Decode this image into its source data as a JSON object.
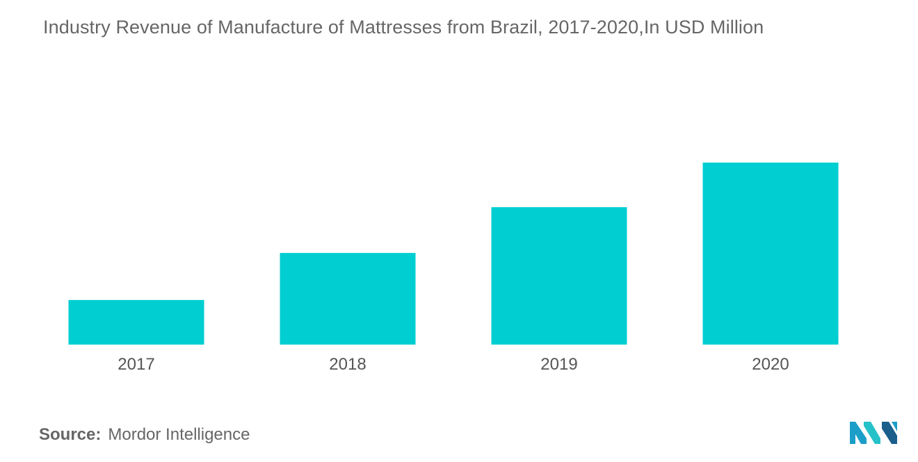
{
  "title": "Industry Revenue of Manufacture of Mattresses from Brazil, 2017-2020,In USD Million",
  "source": {
    "label": "Source:",
    "text": "Mordor Intelligence"
  },
  "logo": {
    "icon": "mordor-intelligence-logo",
    "colors": [
      "#1b9ec8",
      "#25c2c9",
      "#1a5f8c"
    ]
  },
  "colors": {
    "bar": "#00ced1",
    "text": "#666666"
  },
  "chart_data": {
    "type": "bar",
    "categories": [
      "2017",
      "2018",
      "2019",
      "2020"
    ],
    "values": [
      37,
      76,
      114,
      151
    ],
    "title": "Industry Revenue of Manufacture of Mattresses from Brazil, 2017-2020,In USD Million",
    "xlabel": "",
    "ylabel": "",
    "ylim": [
      0,
      151
    ],
    "grid": false,
    "legend": "none"
  }
}
